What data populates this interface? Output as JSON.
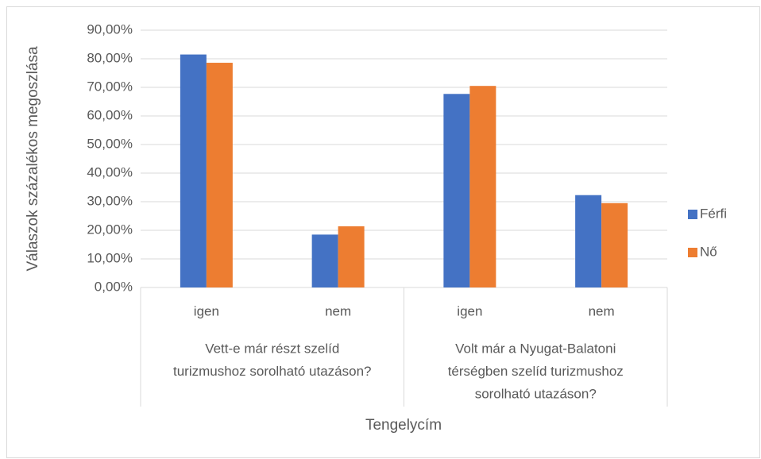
{
  "chart_data": {
    "type": "bar",
    "y_axis_label": "Válaszok százalékos megoszlása",
    "x_axis_label": "Tengelycím",
    "categories": [
      "igen",
      "nem",
      "igen",
      "nem"
    ],
    "groups": [
      [
        "Vett-e már részt szelíd",
        "turizmushoz sorolható utazáson?"
      ],
      [
        "Volt már a Nyugat-Balatoni",
        "térségben szelíd turizmushoz",
        "sorolható utazáson?"
      ]
    ],
    "series": [
      {
        "name": "Férfi",
        "color": "#4472c4",
        "values": [
          81.5,
          18.5,
          67.7,
          32.3
        ]
      },
      {
        "name": "Nő",
        "color": "#ed7d31",
        "values": [
          78.6,
          21.4,
          70.5,
          29.5
        ]
      }
    ],
    "ylim": [
      0,
      90
    ],
    "yticks": [
      {
        "value": 0,
        "label": "0,00%"
      },
      {
        "value": 10,
        "label": "10,00%"
      },
      {
        "value": 20,
        "label": "20,00%"
      },
      {
        "value": 30,
        "label": "30,00%"
      },
      {
        "value": 40,
        "label": "40,00%"
      },
      {
        "value": 50,
        "label": "50,00%"
      },
      {
        "value": 60,
        "label": "60,00%"
      },
      {
        "value": 70,
        "label": "70,00%"
      },
      {
        "value": 80,
        "label": "80,00%"
      },
      {
        "value": 90,
        "label": "90,00%"
      }
    ],
    "grid": true,
    "legend": "right"
  }
}
